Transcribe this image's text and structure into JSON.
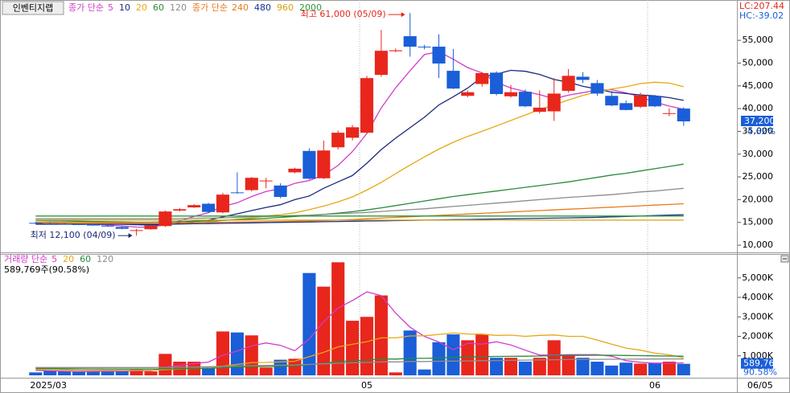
{
  "chart_data": [
    {
      "type": "candlestick",
      "title": "인벤티지랩",
      "categories": [
        "2025/03",
        null,
        null,
        null,
        null,
        null,
        null,
        null,
        null,
        null,
        null,
        null,
        null,
        null,
        null,
        null,
        null,
        null,
        null,
        null,
        null,
        null,
        null,
        "05",
        null,
        null,
        null,
        null,
        null,
        null,
        null,
        null,
        null,
        null,
        null,
        null,
        null,
        null,
        null,
        null,
        null,
        null,
        null,
        "06",
        null,
        null
      ],
      "x_end_label": "06/05",
      "open": [
        14900,
        14800,
        14700,
        14600,
        14500,
        14300,
        14000,
        13300,
        13500,
        14200,
        17600,
        18300,
        19100,
        17200,
        21600,
        22100,
        24200,
        23100,
        26000,
        30700,
        24700,
        31500,
        33600,
        34700,
        47400,
        52600,
        55900,
        53600,
        53600,
        48300,
        42800,
        45400,
        47900,
        42700,
        43700,
        39300,
        39400,
        43900,
        47000,
        45600,
        42800,
        41200,
        40400,
        42800,
        38900,
        40000
      ],
      "high": [
        15100,
        15000,
        14900,
        14800,
        14700,
        14500,
        14200,
        13600,
        14500,
        17600,
        18200,
        19000,
        19300,
        21500,
        26000,
        25000,
        24800,
        23600,
        27000,
        31300,
        33000,
        35200,
        36400,
        47200,
        57300,
        53200,
        61000,
        54000,
        56300,
        53100,
        44000,
        48000,
        48200,
        45200,
        44200,
        44000,
        46700,
        48700,
        48000,
        46300,
        43800,
        41800,
        43500,
        43000,
        40100,
        40300
      ],
      "low": [
        14700,
        14600,
        14500,
        14400,
        14300,
        14000,
        13500,
        12100,
        13400,
        14000,
        17400,
        18200,
        17100,
        17000,
        21300,
        21800,
        22500,
        20300,
        25800,
        24400,
        24500,
        31000,
        33000,
        34500,
        47000,
        52400,
        51400,
        53000,
        46700,
        44300,
        42500,
        44800,
        42900,
        42400,
        40300,
        38900,
        37300,
        43500,
        45600,
        42800,
        40500,
        39600,
        40100,
        40300,
        38300,
        36200
      ],
      "close": [
        14800,
        14700,
        14600,
        14500,
        14400,
        14100,
        13600,
        13300,
        14300,
        17400,
        17900,
        18800,
        17300,
        21100,
        21500,
        24800,
        24200,
        20600,
        26800,
        24600,
        30800,
        34700,
        35900,
        46700,
        52700,
        52800,
        53600,
        53500,
        49900,
        44400,
        43600,
        47800,
        43200,
        43600,
        40500,
        40200,
        43300,
        47200,
        46300,
        43300,
        40700,
        39700,
        42900,
        40500,
        39000,
        37200
      ],
      "up_color": "#e8261c",
      "down_color": "#1a5ed8",
      "legend_groups": [
        "종가 단순",
        "종가 단순"
      ],
      "ma_series": [
        {
          "name": "5",
          "color": "#d23cc8",
          "values": [
            14900,
            14850,
            14800,
            14700,
            14600,
            14460,
            14240,
            13980,
            13940,
            14540,
            15300,
            16340,
            17140,
            18500,
            19320,
            20700,
            21780,
            22440,
            23580,
            24200,
            25400,
            27500,
            30560,
            34540,
            40160,
            44560,
            48340,
            51860,
            52500,
            50840,
            49000,
            47840,
            45780,
            44520,
            43740,
            43060,
            42160,
            42960,
            43500,
            44060,
            44160,
            43440,
            42580,
            41420,
            40560,
            39860
          ]
        },
        {
          "name": "10",
          "color": "#1c2a7a",
          "values": [
            14800,
            14780,
            14750,
            14720,
            14690,
            14650,
            14600,
            14500,
            14400,
            14500,
            14800,
            15200,
            15500,
            16200,
            16900,
            17600,
            18300,
            18900,
            20000,
            20800,
            22500,
            23900,
            25300,
            28000,
            31000,
            33500,
            35800,
            38100,
            40800,
            42600,
            44500,
            46900,
            47600,
            48400,
            48200,
            47500,
            46400,
            45800,
            44900,
            44300,
            43600,
            43300,
            43000,
            42800,
            42400,
            41800
          ]
        },
        {
          "name": "20",
          "color": "#e6a817",
          "values": [
            14900,
            14880,
            14850,
            14820,
            14800,
            14770,
            14740,
            14700,
            14650,
            14620,
            14700,
            14900,
            15100,
            15400,
            15700,
            16000,
            16400,
            16700,
            17100,
            17800,
            18600,
            19500,
            20600,
            22100,
            23800,
            25700,
            27600,
            29400,
            31100,
            32600,
            33900,
            35000,
            36200,
            37400,
            38600,
            39800,
            40800,
            41900,
            42900,
            43700,
            44300,
            44800,
            45500,
            45800,
            45600,
            44800
          ]
        },
        {
          "name": "60",
          "color": "#2a8a3a",
          "values": [
            15400,
            15350,
            15300,
            15250,
            15200,
            15150,
            15100,
            15050,
            15050,
            15100,
            15150,
            15250,
            15350,
            15450,
            15600,
            15750,
            15900,
            16100,
            16300,
            16500,
            16750,
            17050,
            17350,
            17750,
            18200,
            18700,
            19200,
            19700,
            20200,
            20700,
            21100,
            21500,
            21900,
            22300,
            22700,
            23100,
            23500,
            23900,
            24400,
            24900,
            25400,
            25800,
            26300,
            26800,
            27300,
            27800
          ]
        },
        {
          "name": "120",
          "color": "#8c8c8c",
          "values": [
            15800,
            15800,
            15800,
            15800,
            15800,
            15800,
            15800,
            15800,
            15800,
            15800,
            15850,
            15900,
            15950,
            16000,
            16100,
            16200,
            16300,
            16400,
            16500,
            16600,
            16750,
            16900,
            17050,
            17200,
            17400,
            17600,
            17800,
            18000,
            18250,
            18500,
            18750,
            19000,
            19250,
            19500,
            19750,
            20000,
            20250,
            20500,
            20700,
            20900,
            21100,
            21400,
            21700,
            21900,
            22200,
            22500
          ]
        },
        {
          "name": "240",
          "color": "#e87a1c",
          "values": [
            15000,
            15000,
            14990,
            14980,
            14980,
            14970,
            14960,
            14950,
            14950,
            14950,
            14960,
            14980,
            15000,
            15030,
            15070,
            15110,
            15150,
            15200,
            15250,
            15320,
            15400,
            15520,
            15650,
            15800,
            15950,
            16100,
            16250,
            16400,
            16550,
            16700,
            16850,
            17000,
            17150,
            17300,
            17450,
            17600,
            17750,
            17900,
            18050,
            18200,
            18350,
            18500,
            18650,
            18800,
            18950,
            19100
          ]
        },
        {
          "name": "480",
          "color": "#1a3296",
          "values": [
            14600,
            14600,
            14600,
            14600,
            14600,
            14600,
            14600,
            14600,
            14600,
            14600,
            14650,
            14700,
            14750,
            14800,
            14850,
            14900,
            14950,
            15000,
            15050,
            15100,
            15150,
            15200,
            15250,
            15300,
            15350,
            15400,
            15450,
            15500,
            15550,
            15600,
            15650,
            15700,
            15750,
            15800,
            15850,
            15900,
            15950,
            16000,
            16050,
            16100,
            16200,
            16300,
            16400,
            16500,
            16600,
            16700
          ]
        },
        {
          "name": "960",
          "color": "#d8a010",
          "values": [
            15500,
            15500,
            15500,
            15500,
            15500,
            15500,
            15500,
            15500,
            15500,
            15500,
            15500,
            15500,
            15500,
            15500,
            15500,
            15500,
            15500,
            15500,
            15500,
            15500,
            15500,
            15500,
            15500,
            15500,
            15500,
            15500,
            15500,
            15500,
            15500,
            15500,
            15500,
            15500,
            15500,
            15500,
            15500,
            15500,
            15500,
            15500,
            15500,
            15500,
            15500,
            15500,
            15500,
            15500,
            15500,
            15500
          ]
        },
        {
          "name": "2000",
          "color": "#2a9a3a",
          "values": [
            16400,
            16400,
            16400,
            16400,
            16400,
            16400,
            16400,
            16400,
            16400,
            16400,
            16400,
            16400,
            16400,
            16400,
            16400,
            16400,
            16400,
            16400,
            16400,
            16400,
            16400,
            16400,
            16400,
            16400,
            16400,
            16400,
            16400,
            16400,
            16400,
            16400,
            16400,
            16400,
            16400,
            16400,
            16400,
            16400,
            16400,
            16400,
            16400,
            16400,
            16400,
            16400,
            16400,
            16400,
            16400,
            16400
          ]
        }
      ],
      "ylim": [
        8600,
        63500
      ],
      "yticks": [
        {
          "value": 10000,
          "label": "10,000"
        },
        {
          "value": 15000,
          "label": "15,000"
        },
        {
          "value": 20000,
          "label": "20,000"
        },
        {
          "value": 25000,
          "label": "25,000"
        },
        {
          "value": 30000,
          "label": "30,000"
        },
        {
          "value": 35000,
          "label": "35,000"
        },
        {
          "value": 40000,
          "label": "40,000"
        },
        {
          "value": 45000,
          "label": "45,000"
        },
        {
          "value": 50000,
          "label": "50,000"
        },
        {
          "value": 55000,
          "label": "55,000"
        }
      ],
      "high_label": "최고 61,000 (05/09)",
      "low_label": "최저 12,100 (04/09)",
      "last_value_label": "37,200",
      "change_label": "-4.62%",
      "lc_label": "LC:207.44",
      "hc_label": "HC:-39.02"
    },
    {
      "type": "bar",
      "legend_groups": [
        "거래량 단순"
      ],
      "info_label": "589,769주(90.58%)",
      "values": [
        150000,
        250000,
        200000,
        180000,
        220000,
        200000,
        250000,
        300000,
        200000,
        1100000,
        700000,
        700000,
        400000,
        2250000,
        2200000,
        2050000,
        400000,
        800000,
        850000,
        5250000,
        4550000,
        5800000,
        2800000,
        3000000,
        4100000,
        150000,
        2300000,
        300000,
        1700000,
        2100000,
        1800000,
        2100000,
        900000,
        900000,
        700000,
        900000,
        1800000,
        1000000,
        900000,
        700000,
        500000,
        650000,
        600000,
        650000,
        700000,
        589769
      ],
      "ma_series": [
        {
          "name": "5",
          "color": "#d23cc8",
          "values": [
            250000,
            230000,
            210000,
            200000,
            200000,
            210000,
            210000,
            230000,
            230000,
            410000,
            510000,
            600000,
            680000,
            1030000,
            1250000,
            1510000,
            1660000,
            1540000,
            1260000,
            1870000,
            2750000,
            3450000,
            3840000,
            4280000,
            4090000,
            3190000,
            2470000,
            1990000,
            1710000,
            1310000,
            1640000,
            1600000,
            1720000,
            1560000,
            1290000,
            1040000,
            1040000,
            1060000,
            1060000,
            1060000,
            980000,
            750000,
            670000,
            620000,
            620000,
            640000
          ]
        },
        {
          "name": "20",
          "color": "#e6a817",
          "values": [
            300000,
            290000,
            280000,
            270000,
            260000,
            260000,
            250000,
            250000,
            250000,
            290000,
            320000,
            350000,
            360000,
            460000,
            560000,
            650000,
            660000,
            690000,
            720000,
            960000,
            1180000,
            1460000,
            1590000,
            1730000,
            1920000,
            1920000,
            2020000,
            2030000,
            2100000,
            2170000,
            2120000,
            2110000,
            2050000,
            2060000,
            2000000,
            2050000,
            2070000,
            2000000,
            2000000,
            1810000,
            1600000,
            1400000,
            1290000,
            1140000,
            1050000,
            900000
          ]
        },
        {
          "name": "60",
          "color": "#2a8a3a",
          "values": [
            350000,
            345000,
            340000,
            335000,
            330000,
            325000,
            320000,
            320000,
            320000,
            330000,
            340000,
            350000,
            355000,
            390000,
            420000,
            450000,
            455000,
            465000,
            475000,
            550000,
            620000,
            700000,
            740000,
            780000,
            840000,
            835000,
            870000,
            870000,
            890000,
            920000,
            940000,
            960000,
            970000,
            975000,
            980000,
            990000,
            1010000,
            1020000,
            1025000,
            1030000,
            1030000,
            1020000,
            1010000,
            1000000,
            990000,
            980000
          ]
        },
        {
          "name": "120",
          "color": "#8c8c8c",
          "values": [
            400000,
            400000,
            400000,
            400000,
            400000,
            400000,
            400000,
            400000,
            400000,
            410000,
            420000,
            430000,
            440000,
            460000,
            480000,
            500000,
            510000,
            520000,
            530000,
            560000,
            590000,
            620000,
            640000,
            660000,
            690000,
            690000,
            710000,
            710000,
            720000,
            730000,
            740000,
            750000,
            760000,
            770000,
            780000,
            790000,
            800000,
            810000,
            815000,
            820000,
            825000,
            830000,
            835000,
            838000,
            840000,
            842000
          ]
        }
      ],
      "ylim": [
        0,
        5650000
      ],
      "yticks": [
        {
          "value": 1000000,
          "label": "1,000K"
        },
        {
          "value": 2000000,
          "label": "2,000K"
        },
        {
          "value": 3000000,
          "label": "3,000K"
        },
        {
          "value": 4000000,
          "label": "4,000K"
        },
        {
          "value": 5000000,
          "label": "5,000K"
        }
      ],
      "last_value_label": "589,769",
      "ratio_label": "90.58%"
    }
  ]
}
